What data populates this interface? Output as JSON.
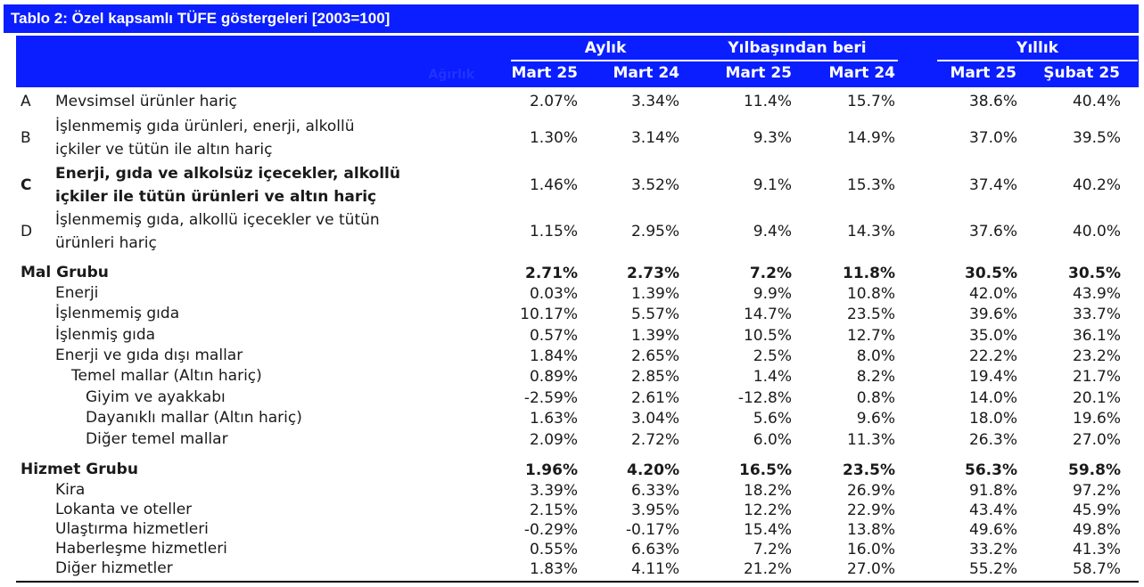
{
  "title": "Tablo 2: Özel kapsamlı TÜFE göstergeleri [2003=100]",
  "header": {
    "groups": [
      "Aylık",
      "Yılbaşından beri",
      "Yıllık"
    ],
    "weight_label": "Ağırlık",
    "columns": [
      "Mart 25",
      "Mart 24",
      "Mart 25",
      "Mart 24",
      "Mart 25",
      "Şubat 25"
    ]
  },
  "rows": [
    {
      "code": "A",
      "label": "Mevsimsel ürünler hariç",
      "values": [
        "2.07%",
        "3.34%",
        "11.4%",
        "15.7%",
        "38.6%",
        "40.4%"
      ]
    },
    {
      "code": "B",
      "label": "İşlenmemiş gıda ürünleri, enerji, alkollü içkiler ve tütün ile altın hariç",
      "values": [
        "1.30%",
        "3.14%",
        "9.3%",
        "14.9%",
        "37.0%",
        "39.5%"
      ]
    },
    {
      "code": "C",
      "label": "Enerji, gıda ve alkolsüz içecekler, alkollü içkiler ile tütün ürünleri ve altın hariç",
      "values": [
        "1.46%",
        "3.52%",
        "9.1%",
        "15.3%",
        "37.4%",
        "40.2%"
      ]
    },
    {
      "code": "D",
      "label": "İşlenmemiş gıda, alkollü içecekler ve tütün ürünleri hariç",
      "values": [
        "1.15%",
        "2.95%",
        "9.4%",
        "14.3%",
        "37.6%",
        "40.0%"
      ]
    },
    {
      "label": "Mal Grubu",
      "values": [
        "2.71%",
        "2.73%",
        "7.2%",
        "11.8%",
        "30.5%",
        "30.5%"
      ]
    },
    {
      "label": "Enerji",
      "values": [
        "0.03%",
        "1.39%",
        "9.9%",
        "10.8%",
        "42.0%",
        "43.9%"
      ]
    },
    {
      "label": "İşlenmemiş gıda",
      "values": [
        "10.17%",
        "5.57%",
        "14.7%",
        "23.5%",
        "39.6%",
        "33.7%"
      ]
    },
    {
      "label": "İşlenmiş gıda",
      "values": [
        "0.57%",
        "1.39%",
        "10.5%",
        "12.7%",
        "35.0%",
        "36.1%"
      ]
    },
    {
      "label": "Enerji ve gıda dışı mallar",
      "values": [
        "1.84%",
        "2.65%",
        "2.5%",
        "8.0%",
        "22.2%",
        "23.2%"
      ]
    },
    {
      "label": "Temel mallar (Altın hariç)",
      "values": [
        "0.89%",
        "2.85%",
        "1.4%",
        "8.2%",
        "19.4%",
        "21.7%"
      ]
    },
    {
      "label": "Giyim ve ayakkabı",
      "values": [
        "-2.59%",
        "2.61%",
        "-12.8%",
        "0.8%",
        "14.0%",
        "20.1%"
      ]
    },
    {
      "label": "Dayanıklı mallar (Altın hariç)",
      "values": [
        "1.63%",
        "3.04%",
        "5.6%",
        "9.6%",
        "18.0%",
        "19.6%"
      ]
    },
    {
      "label": "Diğer temel mallar",
      "values": [
        "2.09%",
        "2.72%",
        "6.0%",
        "11.3%",
        "26.3%",
        "27.0%"
      ]
    },
    {
      "label": "Hizmet Grubu",
      "values": [
        "1.96%",
        "4.20%",
        "16.5%",
        "23.5%",
        "56.3%",
        "59.8%"
      ]
    },
    {
      "label": "Kira",
      "values": [
        "3.39%",
        "6.33%",
        "18.2%",
        "26.9%",
        "91.8%",
        "97.2%"
      ]
    },
    {
      "label": "Lokanta ve oteller",
      "values": [
        "2.15%",
        "3.95%",
        "12.2%",
        "22.9%",
        "43.4%",
        "45.9%"
      ]
    },
    {
      "label": "Ulaştırma hizmetleri",
      "values": [
        "-0.29%",
        "-0.17%",
        "15.4%",
        "13.8%",
        "49.6%",
        "49.8%"
      ]
    },
    {
      "label": "Haberleşme hizmetleri",
      "values": [
        "0.55%",
        "6.63%",
        "7.2%",
        "16.0%",
        "33.2%",
        "41.3%"
      ]
    },
    {
      "label": "Diğer hizmetler",
      "values": [
        "1.83%",
        "4.11%",
        "21.2%",
        "27.0%",
        "55.2%",
        "58.7%"
      ]
    }
  ]
}
